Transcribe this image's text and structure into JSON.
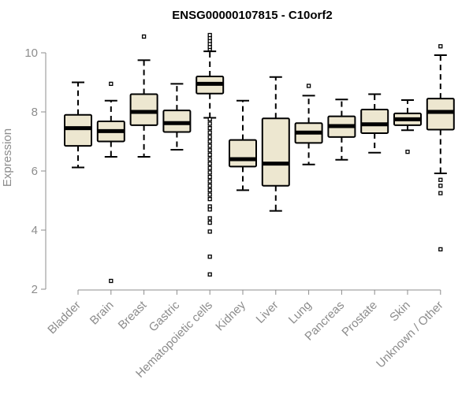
{
  "chart_data": {
    "type": "boxplot",
    "title": "ENSG00000107815 - C10orf2",
    "xlabel": "",
    "ylabel": "Expression",
    "ylim": [
      2,
      10.6
    ],
    "yticks": [
      2,
      4,
      6,
      8,
      10
    ],
    "grid": false,
    "colors": {
      "box_fill": "#ede7d0",
      "stroke": "#000000",
      "axis": "#8c8c8c"
    },
    "categories": [
      "Bladder",
      "Brain",
      "Breast",
      "Gastric",
      "Hematopoietic cells",
      "Kidney",
      "Liver",
      "Lung",
      "Pancreas",
      "Prostate",
      "Skin",
      "Unknown / Other"
    ],
    "boxes": [
      {
        "category": "Bladder",
        "whisker_low": 6.12,
        "q1": 6.85,
        "median": 7.45,
        "q3": 7.9,
        "whisker_high": 9.0,
        "outliers": []
      },
      {
        "category": "Brain",
        "whisker_low": 6.48,
        "q1": 7.0,
        "median": 7.35,
        "q3": 7.68,
        "whisker_high": 8.38,
        "outliers": [
          8.95,
          2.28
        ]
      },
      {
        "category": "Breast",
        "whisker_low": 6.48,
        "q1": 7.55,
        "median": 8.0,
        "q3": 8.6,
        "whisker_high": 9.75,
        "outliers": [
          10.55
        ]
      },
      {
        "category": "Gastric",
        "whisker_low": 6.72,
        "q1": 7.32,
        "median": 7.62,
        "q3": 8.05,
        "whisker_high": 8.95,
        "outliers": []
      },
      {
        "category": "Hematopoietic cells",
        "whisker_low": 7.8,
        "q1": 8.62,
        "median": 8.95,
        "q3": 9.2,
        "whisker_high": 10.05,
        "outliers": [
          10.12,
          10.2,
          10.3,
          10.4,
          10.5,
          10.6,
          7.75,
          7.6,
          7.45,
          7.3,
          7.15,
          7.0,
          6.85,
          6.7,
          6.55,
          6.4,
          6.25,
          6.1,
          5.95,
          5.8,
          5.65,
          5.5,
          5.35,
          5.2,
          5.05,
          4.8,
          4.7,
          4.4,
          4.25,
          3.95,
          3.1,
          2.5
        ]
      },
      {
        "category": "Kidney",
        "whisker_low": 5.35,
        "q1": 6.15,
        "median": 6.4,
        "q3": 7.05,
        "whisker_high": 8.38,
        "outliers": []
      },
      {
        "category": "Liver",
        "whisker_low": 4.65,
        "q1": 5.5,
        "median": 6.25,
        "q3": 7.78,
        "whisker_high": 9.18,
        "outliers": []
      },
      {
        "category": "Lung",
        "whisker_low": 6.22,
        "q1": 6.95,
        "median": 7.3,
        "q3": 7.62,
        "whisker_high": 8.55,
        "outliers": [
          8.88
        ]
      },
      {
        "category": "Pancreas",
        "whisker_low": 6.38,
        "q1": 7.15,
        "median": 7.52,
        "q3": 7.85,
        "whisker_high": 8.42,
        "outliers": []
      },
      {
        "category": "Prostate",
        "whisker_low": 6.62,
        "q1": 7.28,
        "median": 7.58,
        "q3": 8.08,
        "whisker_high": 8.6,
        "outliers": []
      },
      {
        "category": "Skin",
        "whisker_low": 7.38,
        "q1": 7.55,
        "median": 7.75,
        "q3": 7.95,
        "whisker_high": 8.4,
        "outliers": [
          6.65
        ]
      },
      {
        "category": "Unknown / Other",
        "whisker_low": 5.92,
        "q1": 7.4,
        "median": 8.0,
        "q3": 8.45,
        "whisker_high": 9.92,
        "outliers": [
          10.22,
          5.7,
          5.5,
          5.25,
          3.35
        ]
      }
    ]
  }
}
